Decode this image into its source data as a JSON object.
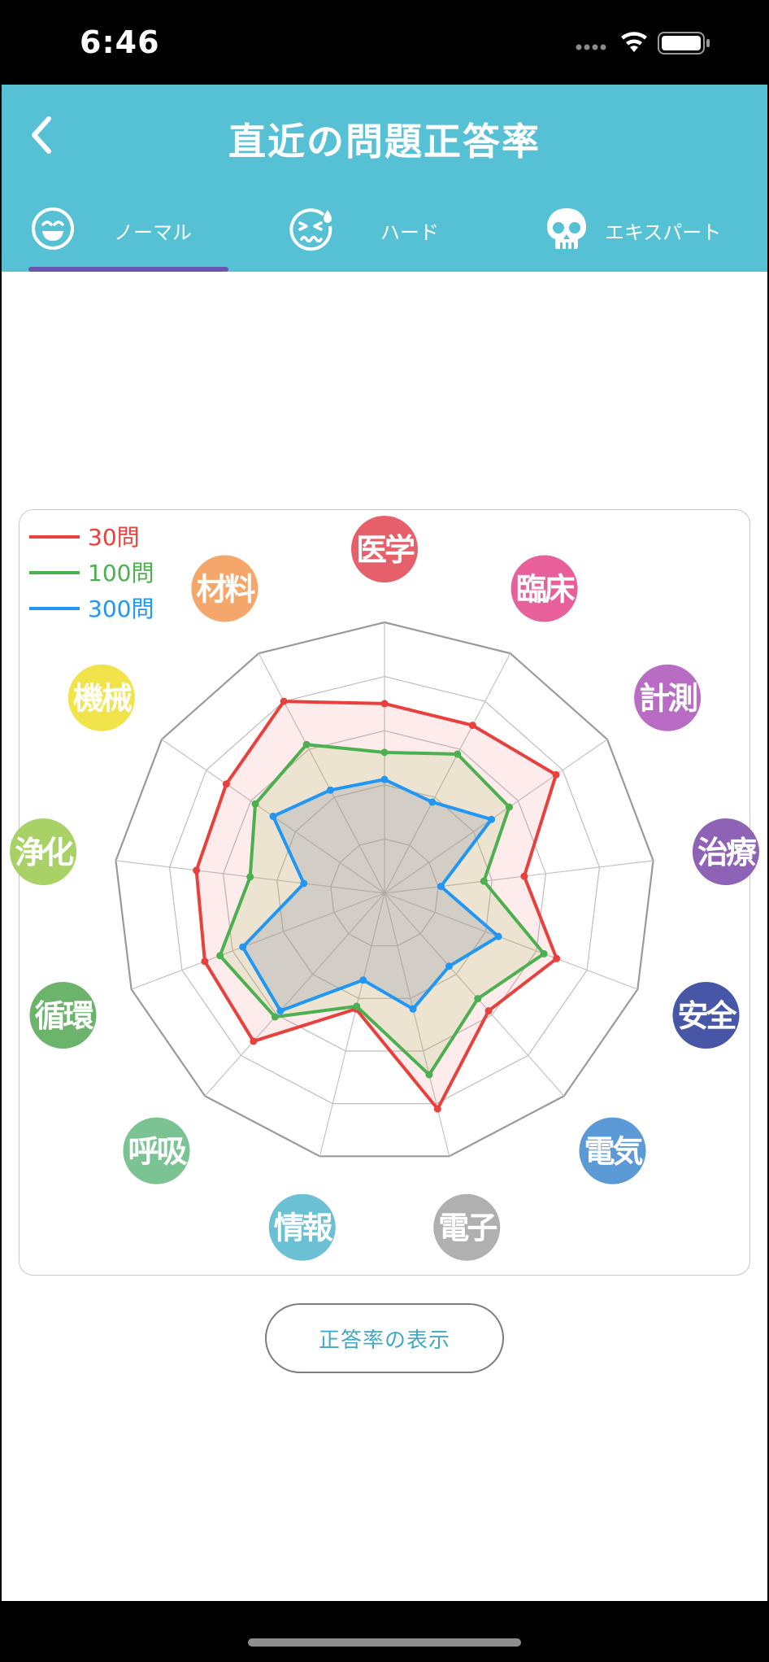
{
  "status_bar": {
    "time": "6:46"
  },
  "header": {
    "title": "直近の問題正答率"
  },
  "tabs": [
    {
      "label": "ノーマル",
      "icon": "smile-icon",
      "selected": true
    },
    {
      "label": "ハード",
      "icon": "sweat-face-icon",
      "selected": false
    },
    {
      "label": "エキスパート",
      "icon": "skull-icon",
      "selected": false
    }
  ],
  "button": {
    "show_rate_label": "正答率の表示"
  },
  "colors": {
    "header": "#56c1d5",
    "tab_indicator": "#6a54b0",
    "series_30": "#e8403c",
    "series_100": "#4caf50",
    "series_300": "#2196f3"
  },
  "chart_data": {
    "type": "radar",
    "rmax": 1.0,
    "grid_levels": 5,
    "legend_position": "top-left",
    "categories": [
      "医学",
      "臨床",
      "計測",
      "治療",
      "安全",
      "電気",
      "電子",
      "情報",
      "呼吸",
      "循環",
      "浄化",
      "機械",
      "材料"
    ],
    "category_colors": [
      "#e5606a",
      "#e8609a",
      "#b86cc4",
      "#8e63b5",
      "#4856a8",
      "#5c9ad6",
      "#b0b0b0",
      "#6cc0d4",
      "#7cc394",
      "#6cb36b",
      "#a8d266",
      "#f0e44a",
      "#f5a66a"
    ],
    "series": [
      {
        "name": "30問",
        "color": "#e8403c",
        "values": [
          0.7,
          0.7,
          0.77,
          0.52,
          0.68,
          0.58,
          0.82,
          0.44,
          0.73,
          0.71,
          0.7,
          0.71,
          0.8
        ]
      },
      {
        "name": "100問",
        "color": "#4caf50",
        "values": [
          0.52,
          0.58,
          0.56,
          0.37,
          0.63,
          0.52,
          0.69,
          0.43,
          0.61,
          0.65,
          0.5,
          0.58,
          0.62
        ]
      },
      {
        "name": "300問",
        "color": "#2196f3",
        "values": [
          0.42,
          0.38,
          0.48,
          0.21,
          0.45,
          0.36,
          0.44,
          0.33,
          0.58,
          0.56,
          0.3,
          0.5,
          0.43
        ]
      }
    ]
  }
}
